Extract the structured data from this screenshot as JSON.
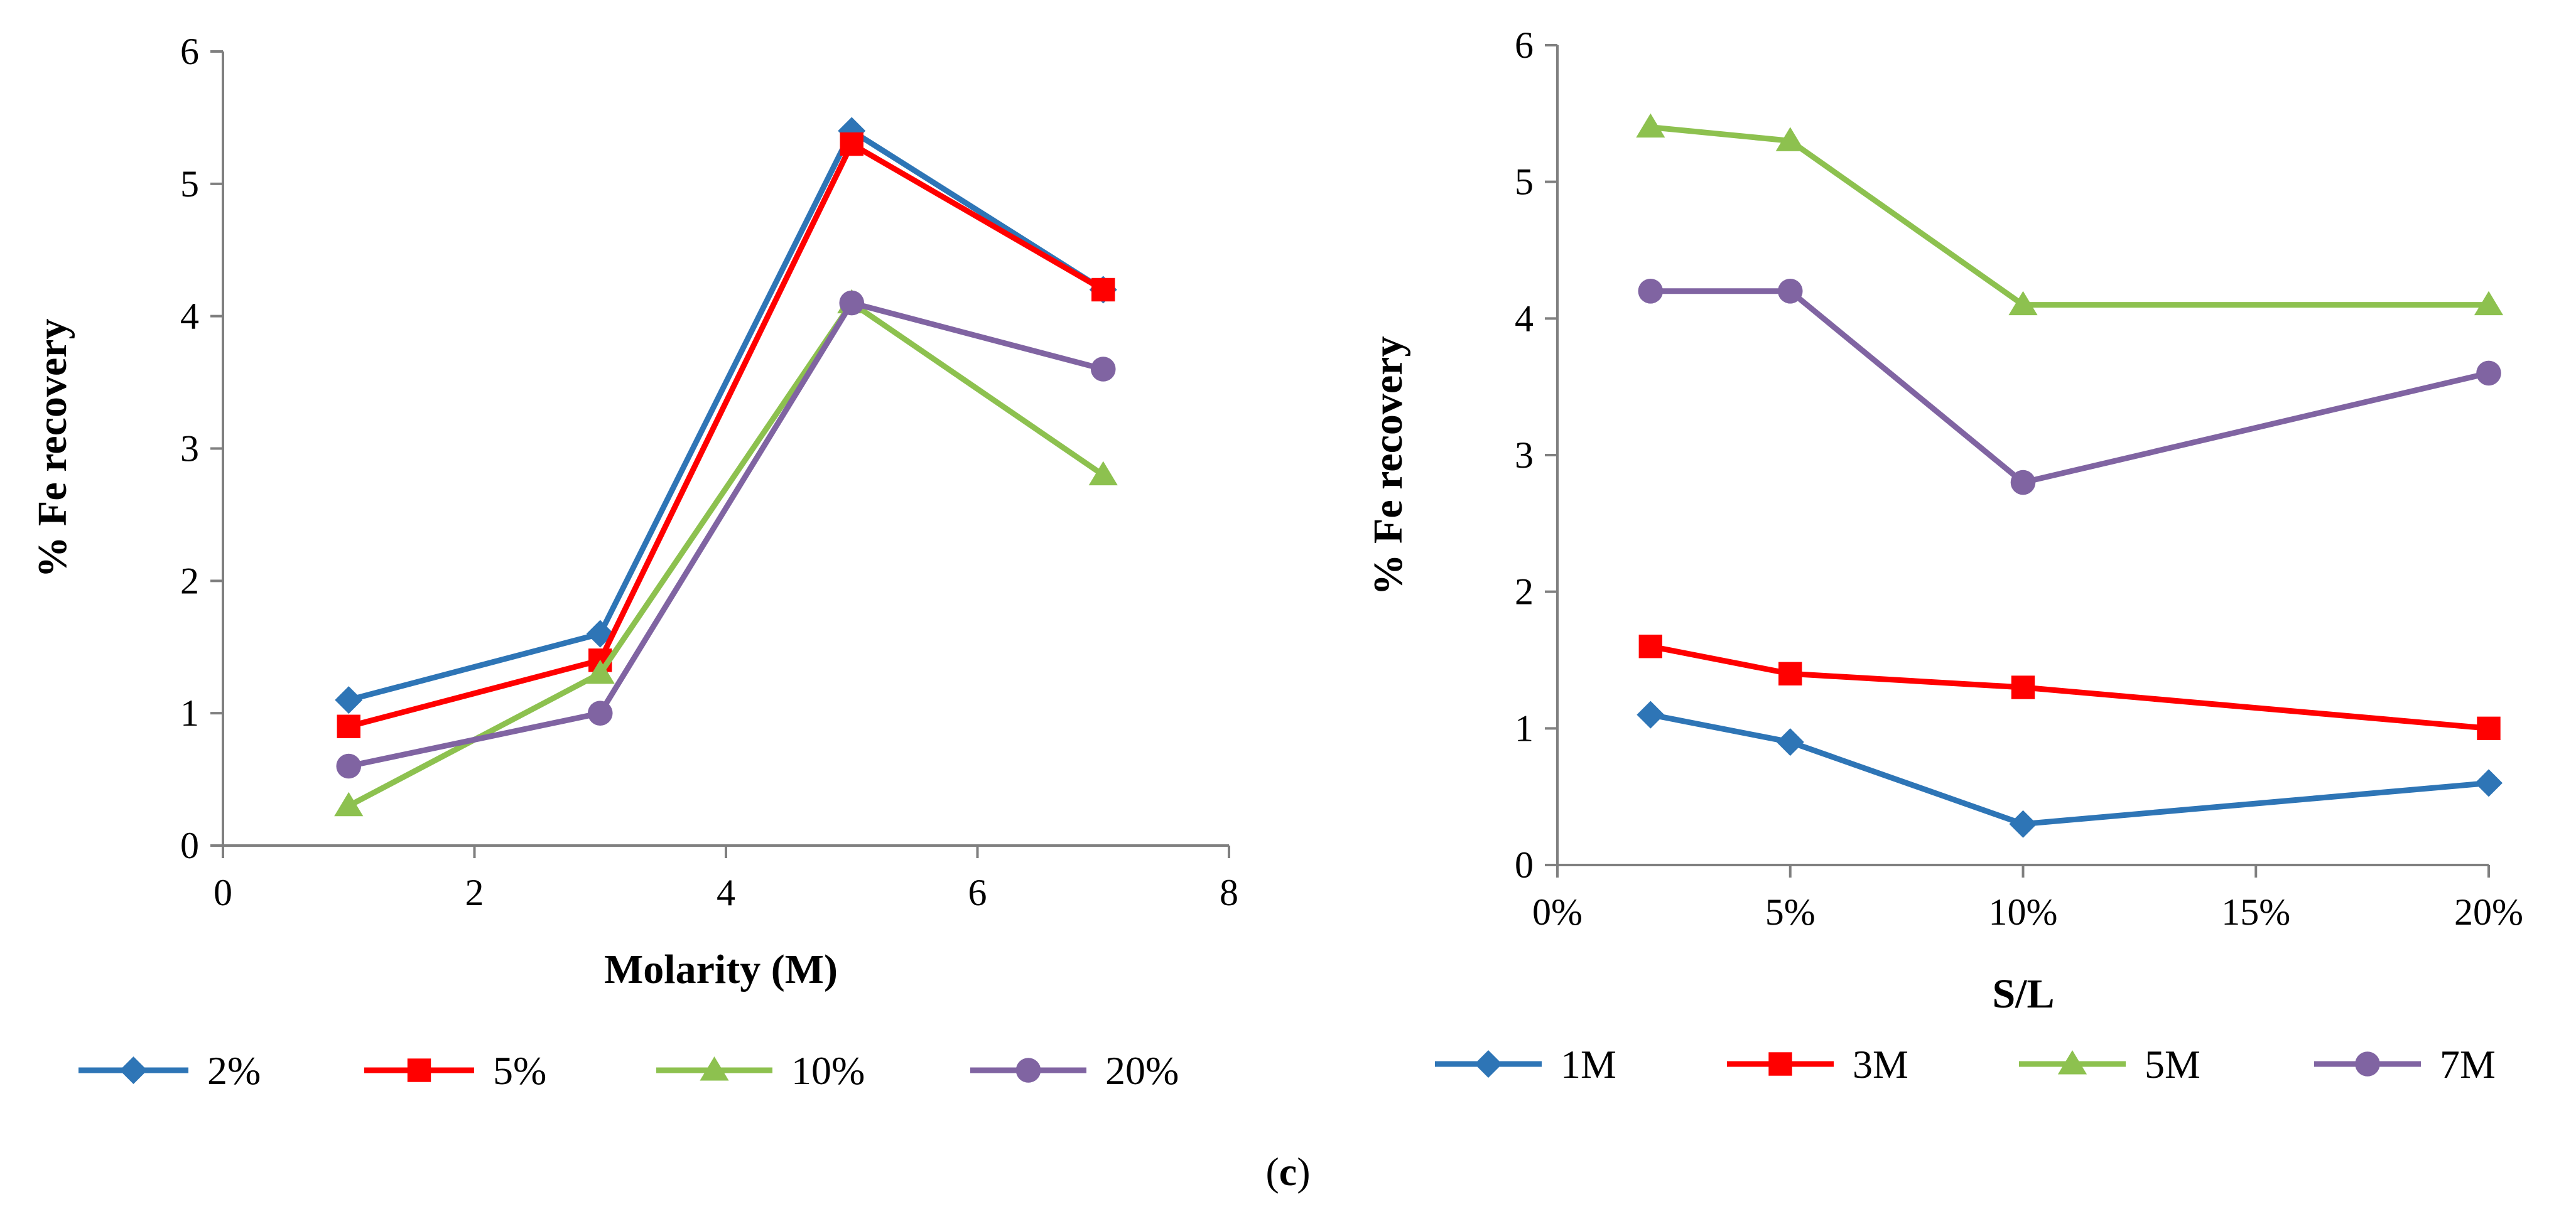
{
  "chart_data": [
    {
      "type": "line",
      "title": "",
      "xlabel": "Molarity (M)",
      "ylabel": "% Fe recovery",
      "xlim": [
        0,
        8
      ],
      "ylim": [
        0,
        6
      ],
      "x_ticks": [
        "0",
        "2",
        "4",
        "6",
        "8"
      ],
      "y_ticks": [
        "0",
        "1",
        "2",
        "3",
        "4",
        "5",
        "6"
      ],
      "x": [
        1,
        3,
        5,
        7
      ],
      "series": [
        {
          "name": "2%",
          "values": [
            1.1,
            1.6,
            5.4,
            4.2
          ],
          "color": "#2E75B6",
          "marker": "diamond"
        },
        {
          "name": "5%",
          "values": [
            0.9,
            1.4,
            5.3,
            4.2
          ],
          "color": "#FF0000",
          "marker": "square"
        },
        {
          "name": "10%",
          "values": [
            0.3,
            1.3,
            4.1,
            2.8
          ],
          "color": "#8DC14F",
          "marker": "triangle"
        },
        {
          "name": "20%",
          "values": [
            0.6,
            1.0,
            4.1,
            3.6
          ],
          "color": "#8064A2",
          "marker": "circle"
        }
      ],
      "grid": false,
      "legend_position": "bottom"
    },
    {
      "type": "line",
      "title": "",
      "xlabel": "S/L",
      "ylabel": "% Fe recovery",
      "xlim": [
        0,
        20
      ],
      "ylim": [
        0,
        6
      ],
      "x_ticks": [
        "0%",
        "5%",
        "10%",
        "15%",
        "20%"
      ],
      "y_ticks": [
        "0",
        "1",
        "2",
        "3",
        "4",
        "5",
        "6"
      ],
      "x": [
        2,
        5,
        10,
        20
      ],
      "series": [
        {
          "name": "1M",
          "values": [
            1.1,
            0.9,
            0.3,
            0.6
          ],
          "color": "#2E75B6",
          "marker": "diamond"
        },
        {
          "name": "3M",
          "values": [
            1.6,
            1.4,
            1.3,
            1.0
          ],
          "color": "#FF0000",
          "marker": "square"
        },
        {
          "name": "5M",
          "values": [
            5.4,
            5.3,
            4.1,
            4.1
          ],
          "color": "#8DC14F",
          "marker": "triangle"
        },
        {
          "name": "7M",
          "values": [
            4.2,
            4.2,
            2.8,
            3.6
          ],
          "color": "#8064A2",
          "marker": "circle"
        }
      ],
      "grid": false,
      "legend_position": "bottom"
    }
  ],
  "caption": {
    "open": "(",
    "label": "c",
    "close": ")"
  }
}
